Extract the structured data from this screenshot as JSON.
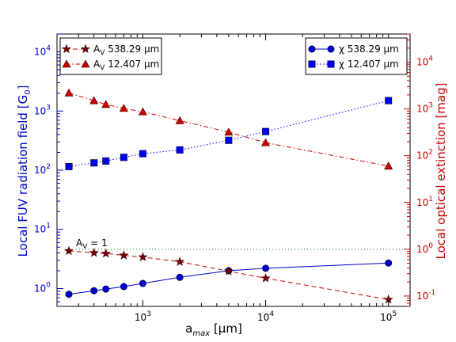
{
  "chart_data": {
    "type": "line",
    "xlabel": "a",
    "xlabel_sub": "max",
    "xlabel_unit": " [μm]",
    "ylabel_left": "Local FUV radiation field [G",
    "ylabel_left_sub": "0",
    "ylabel_left_end": "]",
    "ylabel_right": "Local optical extinction [mag]",
    "x_scale": "log",
    "y_left_scale": "log",
    "y_right_scale": "log",
    "xlim": [
      200,
      150000
    ],
    "ylim_left": [
      0.5,
      20000
    ],
    "ylim_right": [
      0.06,
      40000
    ],
    "x_ticks": [
      {
        "value": 1000,
        "base": "10",
        "exp": "3"
      },
      {
        "value": 10000,
        "base": "10",
        "exp": "4"
      },
      {
        "value": 100000,
        "base": "10",
        "exp": "5"
      }
    ],
    "y_left_ticks": [
      {
        "value": 1,
        "base": "10",
        "exp": "0"
      },
      {
        "value": 10,
        "base": "10",
        "exp": "1"
      },
      {
        "value": 100,
        "base": "10",
        "exp": "2"
      },
      {
        "value": 1000,
        "base": "10",
        "exp": "3"
      },
      {
        "value": 10000,
        "base": "10",
        "exp": "4"
      }
    ],
    "y_right_ticks": [
      {
        "value": 0.1,
        "base": "10",
        "exp": "-1"
      },
      {
        "value": 1,
        "base": "10",
        "exp": "0"
      },
      {
        "value": 10,
        "base": "10",
        "exp": "1"
      },
      {
        "value": 100,
        "base": "10",
        "exp": "2"
      },
      {
        "value": 1000,
        "base": "10",
        "exp": "3"
      },
      {
        "value": 10000,
        "base": "10",
        "exp": "4"
      }
    ],
    "x": [
      250,
      400,
      500,
      700,
      1000,
      2000,
      5000,
      10000,
      100000
    ],
    "series": [
      {
        "name": "χ 538.29 μm",
        "axis": "left",
        "color": "#0000cc",
        "marker": "circle",
        "line": "solid",
        "values": [
          0.8,
          0.92,
          0.98,
          1.08,
          1.22,
          1.55,
          2.0,
          2.2,
          2.7
        ]
      },
      {
        "name": "χ 12.407 μm",
        "axis": "left",
        "color": "#0000ee",
        "marker": "square",
        "line": "dotted",
        "values": [
          115,
          133,
          143,
          165,
          190,
          220,
          320,
          450,
          1500
        ]
      },
      {
        "name": "A",
        "name_sub": "V",
        "name_rest": " 538.29 μm",
        "axis": "right",
        "color": "#cc0000",
        "marker_fill": "#7a0000",
        "marker": "star",
        "line": "dashed",
        "values": [
          0.92,
          0.84,
          0.81,
          0.74,
          0.68,
          0.54,
          0.34,
          0.24,
          0.084
        ]
      },
      {
        "name": "A",
        "name_sub": "V",
        "name_rest": " 12.407 μm",
        "axis": "right",
        "color": "#cc0000",
        "marker_fill": "#cc0000",
        "marker": "triangle",
        "line": "dashdot",
        "values": [
          2200,
          1500,
          1250,
          1030,
          870,
          560,
          320,
          190,
          60
        ]
      }
    ],
    "reference_line": {
      "axis": "right",
      "value": 1,
      "label": "A",
      "label_sub": "V",
      "label_rest": " = 1",
      "color": "#007700",
      "line": "dotted"
    },
    "legend_left": {
      "placement": "top-left",
      "entries": [
        2,
        3
      ]
    },
    "legend_right": {
      "placement": "top-right",
      "entries": [
        0,
        1
      ]
    },
    "grid": false
  }
}
